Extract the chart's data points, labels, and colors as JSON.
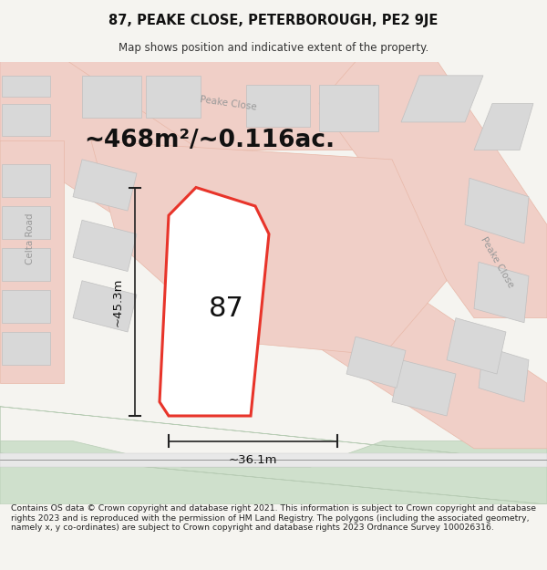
{
  "title": "87, PEAKE CLOSE, PETERBOROUGH, PE2 9JE",
  "subtitle": "Map shows position and indicative extent of the property.",
  "area_text": "~468m²/~0.116ac.",
  "label_87": "87",
  "dim_width": "~36.1m",
  "dim_height": "~45.3m",
  "footer": "Contains OS data © Crown copyright and database right 2021. This information is subject to Crown copyright and database rights 2023 and is reproduced with the permission of HM Land Registry. The polygons (including the associated geometry, namely x, y co-ordinates) are subject to Crown copyright and database rights 2023 Ordnance Survey 100026316.",
  "bg_color": "#f5f4f0",
  "map_bg": "#f5f4f0",
  "road_fill": "#f5f4f0",
  "road_color": "#f0cfc7",
  "road_outline": "#e8b8a8",
  "building_color": "#d8d8d8",
  "building_outline": "#c0c0c0",
  "green_color": "#cfe0cc",
  "green_outline": "#b8ccb5",
  "plot_color": "#e8342a",
  "plot_fill": "#ffffff",
  "dim_color": "#222222",
  "text_color": "#111111",
  "street_label_color": "#999999",
  "figsize": [
    6.0,
    6.25
  ],
  "dpi": 100
}
